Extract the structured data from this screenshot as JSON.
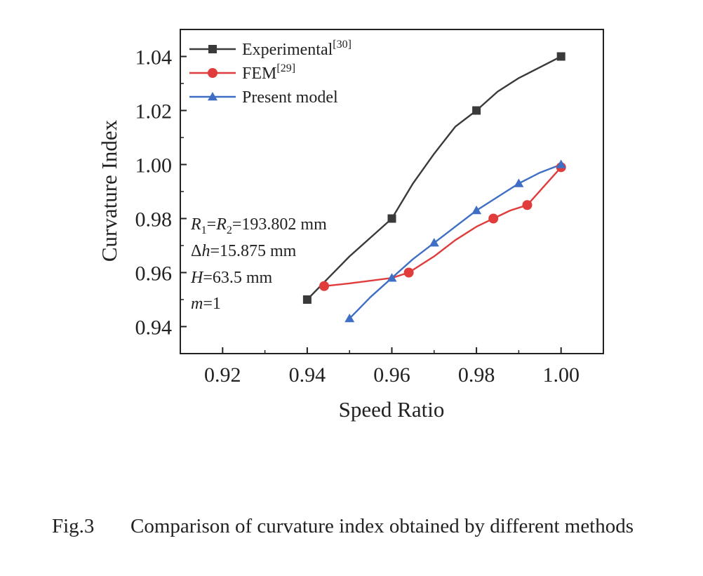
{
  "chart_data": {
    "type": "line",
    "xlabel": "Speed Ratio",
    "ylabel": "Curvature Index",
    "xlim": [
      0.91,
      1.01
    ],
    "ylim": [
      0.93,
      1.05
    ],
    "xticks": [
      "0.92",
      "0.94",
      "0.96",
      "0.98",
      "1.00"
    ],
    "yticks": [
      "0.94",
      "0.96",
      "0.98",
      "1.00",
      "1.02",
      "1.04"
    ],
    "grid": false,
    "legend_position": "top-left",
    "series": [
      {
        "name": "Experimental",
        "ref": "[30]",
        "color": "#3a3a3a",
        "marker": "square",
        "x": [
          0.94,
          0.96,
          0.98,
          1.0
        ],
        "y": [
          0.95,
          0.98,
          1.02,
          1.04
        ],
        "curve": [
          [
            0.94,
            0.95
          ],
          [
            0.945,
            0.958
          ],
          [
            0.95,
            0.966
          ],
          [
            0.955,
            0.973
          ],
          [
            0.96,
            0.98
          ],
          [
            0.965,
            0.993
          ],
          [
            0.97,
            1.004
          ],
          [
            0.975,
            1.014
          ],
          [
            0.98,
            1.02
          ],
          [
            0.985,
            1.027
          ],
          [
            0.99,
            1.032
          ],
          [
            0.995,
            1.036
          ],
          [
            1.0,
            1.04
          ]
        ]
      },
      {
        "name": "FEM",
        "ref": "[29]",
        "color": "#e03c3c",
        "marker": "circle",
        "x": [
          0.944,
          0.964,
          0.984,
          0.992,
          1.0
        ],
        "y": [
          0.955,
          0.96,
          0.98,
          0.985,
          0.999
        ],
        "curve": [
          [
            0.944,
            0.955
          ],
          [
            0.95,
            0.956
          ],
          [
            0.96,
            0.958
          ],
          [
            0.964,
            0.96
          ],
          [
            0.97,
            0.966
          ],
          [
            0.975,
            0.972
          ],
          [
            0.98,
            0.977
          ],
          [
            0.984,
            0.98
          ],
          [
            0.988,
            0.983
          ],
          [
            0.992,
            0.985
          ],
          [
            0.996,
            0.992
          ],
          [
            1.0,
            0.999
          ]
        ]
      },
      {
        "name": "Present model",
        "ref": "",
        "color": "#3f6fc4",
        "marker": "triangle",
        "x": [
          0.95,
          0.96,
          0.97,
          0.98,
          0.99,
          1.0
        ],
        "y": [
          0.943,
          0.958,
          0.971,
          0.983,
          0.993,
          1.0
        ],
        "curve": [
          [
            0.95,
            0.943
          ],
          [
            0.955,
            0.951
          ],
          [
            0.96,
            0.958
          ],
          [
            0.965,
            0.965
          ],
          [
            0.97,
            0.971
          ],
          [
            0.975,
            0.977
          ],
          [
            0.98,
            0.983
          ],
          [
            0.985,
            0.988
          ],
          [
            0.99,
            0.993
          ],
          [
            0.995,
            0.997
          ],
          [
            1.0,
            1.0
          ]
        ]
      }
    ],
    "annotations": [
      {
        "id": "r",
        "italic1": "R",
        "sub1": "1",
        "mid": "=",
        "italic2": "R",
        "sub2": "2",
        "rest": "=193.802 mm"
      },
      {
        "id": "dh",
        "prefix": "Δ",
        "italic": "h",
        "rest": "=15.875 mm"
      },
      {
        "id": "H",
        "italic": "H",
        "rest": "=63.5 mm"
      },
      {
        "id": "m",
        "italic": "m",
        "rest": "=1"
      }
    ]
  },
  "caption": {
    "number": "Fig.3",
    "text": "Comparison of curvature index obtained by different methods"
  }
}
